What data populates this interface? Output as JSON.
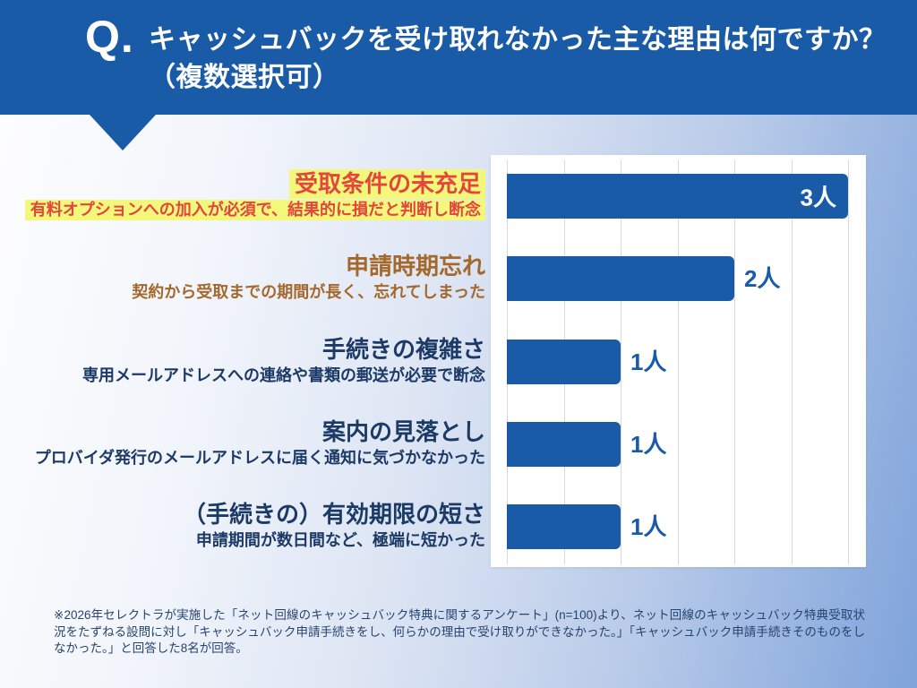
{
  "header": {
    "q_label": "Q.",
    "question_line1": "キャッシュバックを受け取れなかった主な理由は何ですか？",
    "question_line2": "（複数選択可）"
  },
  "colors": {
    "header_bg": "#1a5ba8",
    "bar": "#1a5ba8",
    "value_label": "#1a5ba8",
    "highlight_bg": "#f3f87b",
    "accent_red": "#e2463e",
    "accent_brown": "#a5682c",
    "navy": "#1c3a66",
    "gridline": "#d9d9d9",
    "footnote_text": "#26446e"
  },
  "categories": [
    {
      "title": "受取条件の未充足",
      "subtitle": "有料オプションへの加入が必須で、結果的に損だと判断し断念",
      "title_color": "#e2463e",
      "subtitle_color": "#e2463e",
      "highlight": true
    },
    {
      "title": "申請時期忘れ",
      "subtitle": "契約から受取までの期間が長く、忘れてしまった",
      "title_color": "#a5682c",
      "subtitle_color": "#a5682c",
      "highlight": false
    },
    {
      "title": "手続きの複雑さ",
      "subtitle": "専用メールアドレスへの連絡や書類の郵送が必要で断念",
      "title_color": "#1c3a66",
      "subtitle_color": "#1c3a66",
      "highlight": false
    },
    {
      "title": "案内の見落とし",
      "subtitle": "プロバイダ発行のメールアドレスに届く通知に気づかなかった",
      "title_color": "#1c3a66",
      "subtitle_color": "#1c3a66",
      "highlight": false
    },
    {
      "title": "（手続きの）有効期限の短さ",
      "subtitle": "申請期間が数日間など、極端に短かった",
      "title_color": "#1c3a66",
      "subtitle_color": "#1c3a66",
      "highlight": false
    }
  ],
  "chart_data": {
    "type": "bar",
    "orientation": "horizontal",
    "title": "キャッシュバックを受け取れなかった主な理由は何ですか？（複数選択可）",
    "categories": [
      "受取条件の未充足",
      "申請時期忘れ",
      "手続きの複雑さ",
      "案内の見落とし",
      "（手続きの）有効期限の短さ"
    ],
    "values": [
      3,
      2,
      1,
      1,
      1
    ],
    "value_labels": [
      "3人",
      "2人",
      "1人",
      "1人",
      "1人"
    ],
    "value_label_inside": [
      true,
      false,
      false,
      false,
      false
    ],
    "xlim": [
      0,
      3
    ],
    "grid_interval": 0.5,
    "grid": true,
    "legend": false,
    "bar_color": "#1a5ba8"
  },
  "footnote": "※2026年セレクトラが実施した「ネット回線のキャッシュバック特典に関するアンケート」(n=100)より、ネット回線のキャッシュバック特典受取状況をたずねる設問に対し「キャッシュバック申請手続きをし、何らかの理由で受け取りができなかった。」「キャッシュバック申請手続きそのものをしなかった。」と回答した8名が回答。"
}
